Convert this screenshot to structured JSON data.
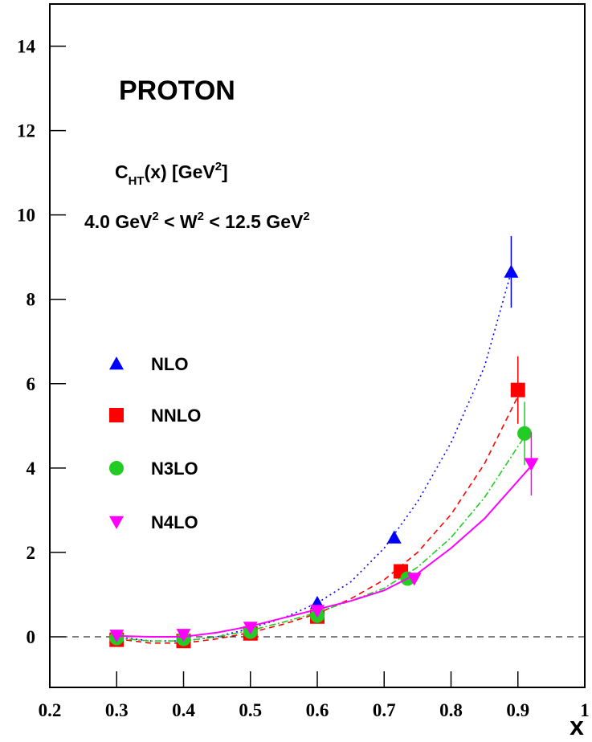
{
  "chart_data": {
    "type": "scatter",
    "xlim": [
      0.2,
      1
    ],
    "ylim": [
      -1.2,
      15
    ],
    "xticks": [
      0.2,
      0.3,
      0.4,
      0.5,
      0.6,
      0.7,
      0.8,
      0.9,
      1
    ],
    "yticks": [
      0,
      2,
      4,
      6,
      8,
      10,
      12,
      14
    ],
    "x_label": "x",
    "hline": 0,
    "legend": "left",
    "annotations": [
      [
        {
          "text": "PROTON"
        }
      ],
      [
        {
          "text": "C"
        },
        {
          "text": "HT",
          "sub": true
        },
        {
          "text": "(x) [GeV"
        },
        {
          "text": "2",
          "sup": true
        },
        {
          "text": "]"
        }
      ],
      [
        {
          "text": "4.0 GeV"
        },
        {
          "text": "2",
          "sup": true
        },
        {
          "text": " < W"
        },
        {
          "text": "2",
          "sup": true
        },
        {
          "text": " < 12.5 GeV"
        },
        {
          "text": "2",
          "sup": true
        }
      ]
    ],
    "series": [
      {
        "name": "NLO",
        "color": "#0000ff",
        "marker": "triangle-up",
        "dash": "2,4",
        "x": [
          0.3,
          0.4,
          0.5,
          0.6,
          0.715,
          0.89
        ],
        "values": [
          0,
          -0.05,
          0.15,
          0.8,
          2.35,
          8.65
        ],
        "errors": [
          null,
          null,
          null,
          null,
          null,
          0.85
        ],
        "curve": {
          "x": [
            0.3,
            0.35,
            0.4,
            0.45,
            0.5,
            0.55,
            0.6,
            0.65,
            0.7,
            0.75,
            0.8,
            0.85,
            0.89
          ],
          "y": [
            0,
            -0.1,
            -0.1,
            0,
            0.2,
            0.45,
            0.8,
            1.3,
            2.1,
            3.2,
            4.6,
            6.4,
            8.65
          ]
        }
      },
      {
        "name": "NNLO",
        "color": "#ff0000",
        "marker": "square",
        "dash": "7,5",
        "x": [
          0.3,
          0.4,
          0.5,
          0.6,
          0.725,
          0.9
        ],
        "values": [
          -0.07,
          -0.1,
          0.08,
          0.48,
          1.55,
          5.85
        ],
        "errors": [
          null,
          null,
          null,
          null,
          null,
          0.8
        ],
        "curve": {
          "x": [
            0.3,
            0.35,
            0.4,
            0.45,
            0.5,
            0.55,
            0.6,
            0.65,
            0.7,
            0.75,
            0.8,
            0.85,
            0.9
          ],
          "y": [
            -0.05,
            -0.15,
            -0.15,
            -0.05,
            0.1,
            0.3,
            0.55,
            0.9,
            1.35,
            2.0,
            2.9,
            4.1,
            5.7
          ]
        }
      },
      {
        "name": "N3LO",
        "color": "#22cc22",
        "marker": "circle",
        "dash": "8,3,2,3",
        "x": [
          0.3,
          0.4,
          0.5,
          0.6,
          0.735,
          0.91
        ],
        "values": [
          -0.03,
          -0.05,
          0.12,
          0.5,
          1.38,
          4.82
        ],
        "errors": [
          null,
          null,
          null,
          null,
          null,
          0.75
        ],
        "curve": {
          "x": [
            0.3,
            0.35,
            0.4,
            0.45,
            0.5,
            0.55,
            0.6,
            0.65,
            0.7,
            0.75,
            0.8,
            0.85,
            0.91
          ],
          "y": [
            -0.03,
            -0.1,
            -0.1,
            0,
            0.15,
            0.35,
            0.58,
            0.85,
            1.15,
            1.65,
            2.35,
            3.3,
            4.75
          ]
        }
      },
      {
        "name": "N4LO",
        "color": "#ff00ff",
        "marker": "triangle-down",
        "dash": "none",
        "x": [
          0.3,
          0.4,
          0.5,
          0.6,
          0.745,
          0.92
        ],
        "values": [
          0.03,
          0.05,
          0.22,
          0.62,
          1.38,
          4.1
        ],
        "errors": [
          null,
          null,
          null,
          null,
          null,
          0.75
        ],
        "curve": {
          "x": [
            0.3,
            0.35,
            0.4,
            0.45,
            0.5,
            0.55,
            0.6,
            0.65,
            0.7,
            0.75,
            0.8,
            0.85,
            0.92
          ],
          "y": [
            0.02,
            0,
            0,
            0.1,
            0.25,
            0.45,
            0.65,
            0.85,
            1.1,
            1.5,
            2.1,
            2.8,
            4.05
          ]
        }
      }
    ]
  }
}
